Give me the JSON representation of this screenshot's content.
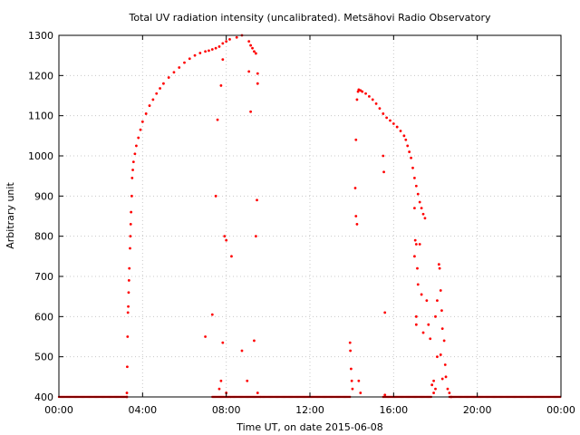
{
  "chart_data": {
    "type": "scatter",
    "title": "Total UV radiation intensity (uncalibrated). Metsähovi Radio Observatory",
    "xlabel": "Time UT, on date 2015-06-08",
    "ylabel": "Arbitrary unit",
    "xlim": [
      "00:00",
      "24:00"
    ],
    "ylim": [
      400,
      1300
    ],
    "x_ticks": [
      "00:00",
      "04:00",
      "08:00",
      "12:00",
      "16:00",
      "20:00",
      "00:00"
    ],
    "y_ticks": [
      "400",
      "500",
      "600",
      "700",
      "800",
      "900",
      "1000",
      "1100",
      "1200",
      "1300"
    ],
    "grid": true,
    "marker_color": "#ff0000",
    "points": [
      [
        "03:15",
        400
      ],
      [
        "03:15",
        410
      ],
      [
        "03:16",
        475
      ],
      [
        "03:17",
        550
      ],
      [
        "03:18",
        610
      ],
      [
        "03:19",
        625
      ],
      [
        "03:20",
        660
      ],
      [
        "03:21",
        690
      ],
      [
        "03:22",
        720
      ],
      [
        "03:24",
        770
      ],
      [
        "03:25",
        800
      ],
      [
        "03:26",
        830
      ],
      [
        "03:27",
        860
      ],
      [
        "03:29",
        900
      ],
      [
        "03:30",
        945
      ],
      [
        "03:32",
        965
      ],
      [
        "03:34",
        985
      ],
      [
        "03:38",
        1005
      ],
      [
        "03:42",
        1025
      ],
      [
        "03:48",
        1045
      ],
      [
        "03:54",
        1065
      ],
      [
        "04:00",
        1085
      ],
      [
        "04:10",
        1105
      ],
      [
        "04:20",
        1125
      ],
      [
        "04:30",
        1140
      ],
      [
        "04:40",
        1155
      ],
      [
        "04:50",
        1168
      ],
      [
        "05:00",
        1180
      ],
      [
        "05:15",
        1195
      ],
      [
        "05:30",
        1208
      ],
      [
        "05:45",
        1220
      ],
      [
        "06:00",
        1232
      ],
      [
        "06:15",
        1242
      ],
      [
        "06:30",
        1250
      ],
      [
        "06:45",
        1256
      ],
      [
        "07:00",
        1260
      ],
      [
        "07:10",
        1262
      ],
      [
        "07:20",
        1265
      ],
      [
        "07:30",
        1268
      ],
      [
        "07:40",
        1272
      ],
      [
        "07:50",
        1280
      ],
      [
        "08:00",
        1285
      ],
      [
        "08:10",
        1290
      ],
      [
        "08:30",
        1295
      ],
      [
        "08:45",
        1300
      ],
      [
        "09:05",
        1285
      ],
      [
        "09:10",
        1275
      ],
      [
        "09:15",
        1268
      ],
      [
        "09:20",
        1260
      ],
      [
        "09:25",
        1255
      ],
      [
        "09:30",
        1205
      ],
      [
        "09:30",
        1180
      ],
      [
        "07:00",
        550
      ],
      [
        "07:20",
        605
      ],
      [
        "07:30",
        900
      ],
      [
        "07:35",
        1090
      ],
      [
        "07:45",
        1175
      ],
      [
        "07:50",
        1240
      ],
      [
        "07:55",
        800
      ],
      [
        "08:00",
        790
      ],
      [
        "08:15",
        750
      ],
      [
        "07:50",
        535
      ],
      [
        "07:45",
        440
      ],
      [
        "07:40",
        420
      ],
      [
        "08:00",
        410
      ],
      [
        "08:45",
        515
      ],
      [
        "09:00",
        440
      ],
      [
        "09:05",
        1210
      ],
      [
        "09:10",
        1110
      ],
      [
        "09:20",
        540
      ],
      [
        "09:25",
        800
      ],
      [
        "09:28",
        890
      ],
      [
        "09:30",
        410
      ],
      [
        "13:55",
        535
      ],
      [
        "13:56",
        515
      ],
      [
        "13:58",
        470
      ],
      [
        "14:00",
        440
      ],
      [
        "14:02",
        420
      ],
      [
        "14:10",
        920
      ],
      [
        "14:12",
        850
      ],
      [
        "14:15",
        830
      ],
      [
        "14:12",
        1040
      ],
      [
        "14:15",
        1140
      ],
      [
        "14:18",
        1160
      ],
      [
        "14:20",
        1165
      ],
      [
        "14:25",
        1163
      ],
      [
        "14:30",
        1160
      ],
      [
        "14:40",
        1155
      ],
      [
        "14:50",
        1148
      ],
      [
        "15:00",
        1140
      ],
      [
        "15:10",
        1130
      ],
      [
        "15:20",
        1118
      ],
      [
        "15:30",
        1105
      ],
      [
        "15:40",
        1095
      ],
      [
        "15:50",
        1088
      ],
      [
        "16:00",
        1080
      ],
      [
        "16:10",
        1072
      ],
      [
        "16:20",
        1062
      ],
      [
        "16:30",
        1050
      ],
      [
        "16:35",
        1040
      ],
      [
        "16:40",
        1025
      ],
      [
        "16:45",
        1010
      ],
      [
        "16:50",
        995
      ],
      [
        "16:55",
        970
      ],
      [
        "17:00",
        945
      ],
      [
        "17:05",
        925
      ],
      [
        "17:10",
        905
      ],
      [
        "17:15",
        885
      ],
      [
        "17:20",
        870
      ],
      [
        "17:25",
        855
      ],
      [
        "17:30",
        845
      ],
      [
        "15:30",
        1000
      ],
      [
        "15:32",
        960
      ],
      [
        "15:35",
        610
      ],
      [
        "15:35",
        405
      ],
      [
        "14:20",
        440
      ],
      [
        "14:25",
        410
      ],
      [
        "17:00",
        870
      ],
      [
        "17:02",
        790
      ],
      [
        "17:05",
        780
      ],
      [
        "17:08",
        720
      ],
      [
        "17:00",
        750
      ],
      [
        "17:05",
        600
      ],
      [
        "17:05",
        580
      ],
      [
        "17:10",
        680
      ],
      [
        "17:15",
        780
      ],
      [
        "17:20",
        655
      ],
      [
        "17:25",
        560
      ],
      [
        "17:35",
        640
      ],
      [
        "17:40",
        580
      ],
      [
        "17:45",
        545
      ],
      [
        "17:55",
        440
      ],
      [
        "18:00",
        420
      ],
      [
        "18:00",
        600
      ],
      [
        "18:05",
        640
      ],
      [
        "18:10",
        730
      ],
      [
        "18:12",
        720
      ],
      [
        "18:15",
        665
      ],
      [
        "18:18",
        615
      ],
      [
        "18:20",
        570
      ],
      [
        "18:25",
        540
      ],
      [
        "18:28",
        480
      ],
      [
        "18:30",
        450
      ],
      [
        "18:35",
        420
      ],
      [
        "18:40",
        410
      ],
      [
        "18:45",
        400
      ],
      [
        "17:50",
        430
      ],
      [
        "17:55",
        410
      ],
      [
        "18:05",
        500
      ],
      [
        "18:15",
        505
      ],
      [
        "18:20",
        445
      ]
    ],
    "baseline_segments": [
      {
        "from": "00:00",
        "to": "03:15",
        "value": 400
      },
      {
        "from": "07:20",
        "to": "09:40",
        "value": 400
      },
      {
        "from": "09:40",
        "to": "13:55",
        "value": 400
      },
      {
        "from": "15:30",
        "to": "17:50",
        "value": 400
      },
      {
        "from": "18:40",
        "to": "24:00",
        "value": 400
      }
    ]
  }
}
